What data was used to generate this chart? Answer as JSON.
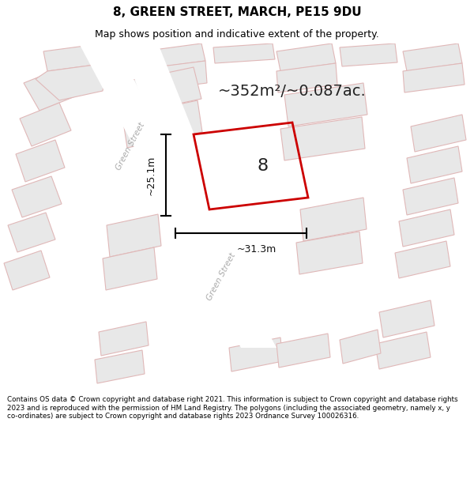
{
  "title": "8, GREEN STREET, MARCH, PE15 9DU",
  "subtitle": "Map shows position and indicative extent of the property.",
  "footer": "Contains OS data © Crown copyright and database right 2021. This information is subject to Crown copyright and database rights 2023 and is reproduced with the permission of HM Land Registry. The polygons (including the associated geometry, namely x, y co-ordinates) are subject to Crown copyright and database rights 2023 Ordnance Survey 100026316.",
  "area_text": "~352m²/~0.087ac.",
  "label_number": "8",
  "dim_width": "~31.3m",
  "dim_height": "~25.1m",
  "plot_edge_color": "#cc0000",
  "map_bg": "#ffffff",
  "building_fill": "#e8e8e8",
  "building_edge_light": "#e0b8b8",
  "street_label": "Green Street"
}
